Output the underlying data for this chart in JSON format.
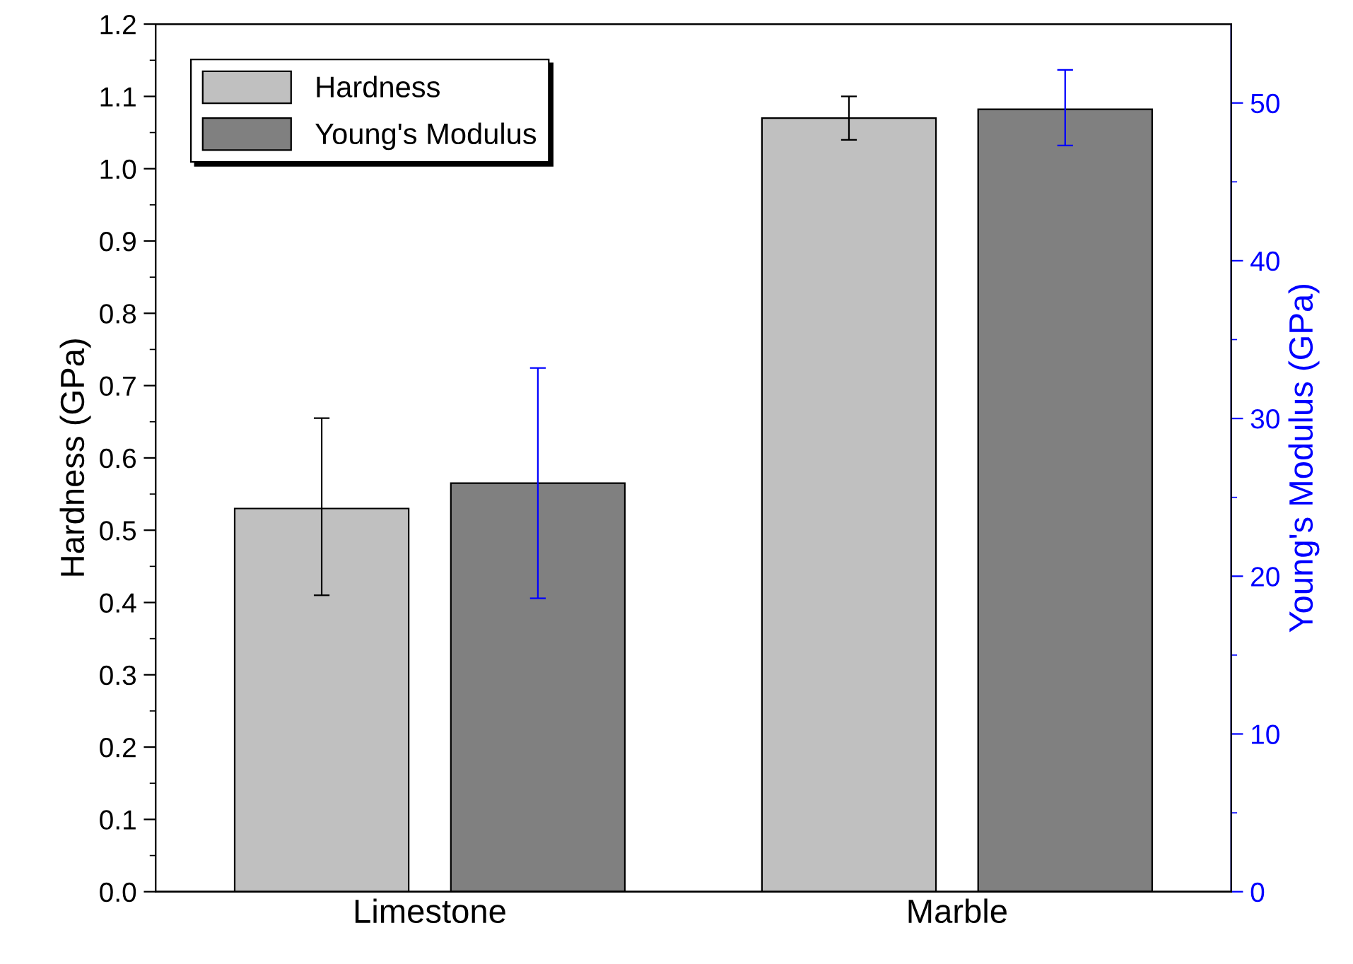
{
  "chart_data": {
    "type": "bar",
    "categories": [
      "Limestone",
      "Marble"
    ],
    "ylabel": "Hardness (GPa)",
    "y2label": "Young's Modulus (GPa)",
    "ylim": [
      0,
      1.2
    ],
    "yticks": [
      {
        "value": 0,
        "label": "0.0"
      },
      0.1,
      0.2,
      0.3,
      0.4,
      0.5,
      0.6,
      0.7,
      0.8,
      0.9,
      {
        "value": 1,
        "label": "1.0"
      },
      1.1,
      1.2
    ],
    "y2lim": [
      0,
      55
    ],
    "y2ticks": [
      0,
      10,
      20,
      30,
      40,
      50
    ],
    "series": [
      {
        "name": "Hardness",
        "color": "#c0c0c0",
        "values": [
          0.53,
          1.07
        ],
        "errors": [
          [
            0.41,
            0.655
          ],
          [
            1.04,
            1.1
          ]
        ]
      },
      {
        "name": "Young's Modulus",
        "color": "#808080",
        "axis": "y2",
        "values": [
          25.9,
          49.6
        ],
        "errors": [
          [
            18.6,
            33.2
          ],
          [
            47.3,
            52.1
          ]
        ]
      }
    ],
    "legend": "top left",
    "grid": false
  }
}
